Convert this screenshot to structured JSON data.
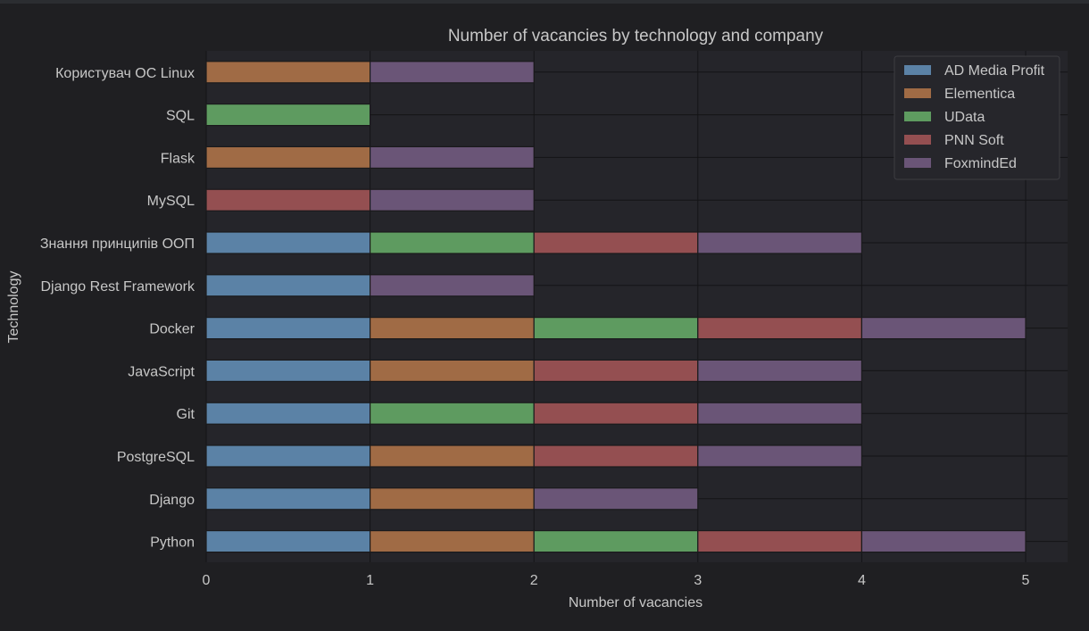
{
  "chart_data": {
    "type": "bar",
    "orientation": "horizontal",
    "stacked": true,
    "title": "Number of vacancies by technology and company",
    "xlabel": "Number of vacancies",
    "ylabel": "Technology",
    "xlim": [
      0,
      5.25
    ],
    "xticks": [
      "0",
      "1",
      "2",
      "3",
      "4",
      "5"
    ],
    "grid": true,
    "legend_position": "top-right",
    "categories": [
      "Python",
      "Django",
      "PostgreSQL",
      "Git",
      "JavaScript",
      "Docker",
      "Django Rest Framework",
      "Знання принципів ООП",
      "MySQL",
      "Flask",
      "SQL",
      "Користувач ОС Linux"
    ],
    "series": [
      {
        "name": "AD Media Profit",
        "color": "#5b82a6",
        "values": [
          1,
          1,
          1,
          1,
          1,
          1,
          1,
          1,
          0,
          0,
          0,
          0
        ]
      },
      {
        "name": "Elementica",
        "color": "#a06b45",
        "values": [
          1,
          1,
          1,
          0,
          1,
          1,
          0,
          0,
          0,
          1,
          0,
          1
        ]
      },
      {
        "name": "UData",
        "color": "#5e9b60",
        "values": [
          1,
          0,
          0,
          1,
          0,
          1,
          0,
          1,
          0,
          0,
          1,
          0
        ]
      },
      {
        "name": "PNN Soft",
        "color": "#944f51",
        "values": [
          1,
          0,
          1,
          1,
          1,
          1,
          0,
          1,
          1,
          0,
          0,
          0
        ]
      },
      {
        "name": "FoxmindEd",
        "color": "#6a5577",
        "values": [
          1,
          1,
          1,
          1,
          1,
          1,
          1,
          1,
          1,
          1,
          0,
          1
        ]
      }
    ]
  },
  "theme": {
    "background": "#1f1f22",
    "plot_background": "#25252a",
    "grid_color": "#141416",
    "text_color": "#c7c7c7"
  }
}
